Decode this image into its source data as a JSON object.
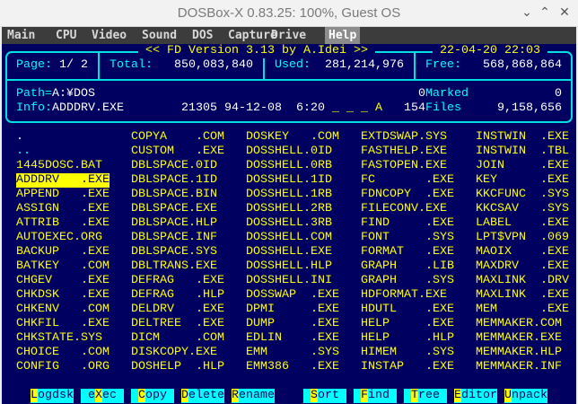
{
  "window": {
    "title": "DOSBox-X 0.83.25: 100%, Guest OS",
    "controls": [
      "⌄",
      "⌃",
      "✕"
    ]
  },
  "menu": [
    {
      "label": "Main"
    },
    {
      "label": "CPU"
    },
    {
      "label": "Video"
    },
    {
      "label": "Sound"
    },
    {
      "label": "DOS"
    },
    {
      "label": "Capture"
    },
    {
      "label": "Drive"
    },
    {
      "label": "Help",
      "active": true
    }
  ],
  "header": {
    "title": "<< FD Version 3.13 by A.Idei >>",
    "datetime": "22-04-20 22:03",
    "page_label": "Page:",
    "page_value": "1/ 2",
    "total_label": "Total:",
    "total_value": "850,083,840",
    "used_label": "Used:",
    "used_value": "281,214,976",
    "free_label": "Free:",
    "free_value": "568,868,864",
    "path_label": "Path=",
    "path_value": "A:¥DOS",
    "marked_count": "0",
    "marked_label": "Marked",
    "marked_size": "0",
    "info_label": "Info:",
    "info_file": "ADDDRV.EXE",
    "info_details": "21305 94-12-08  6:20",
    "info_attrs": "_ _ _ A",
    "files_count": "154",
    "files_label": "Files",
    "files_size": "9,158,656"
  },
  "files": [
    [
      ".",
      "..",
      "1445DOSC.BAT",
      "ADDDRV   .EXE",
      "APPEND   .EXE",
      "ASSIGN   .EXE",
      "ATTRIB   .EXE",
      "AUTOEXEC.ORG",
      "BACKUP   .EXE",
      "BATKEY   .COM",
      "CHGEV    .EXE",
      "CHKDSK   .EXE",
      "CHKENV   .COM",
      "CHKFIL   .EXE",
      "CHKSTATE.SYS",
      "CHOICE   .COM",
      "CONFIG   .ORG"
    ],
    [
      "COPYA    .COM",
      "CUSTOM   .EXE",
      "DBLSPACE.0ID",
      "DBLSPACE.1ID",
      "DBLSPACE.BIN",
      "DBLSPACE.EXE",
      "DBLSPACE.HLP",
      "DBLSPACE.INF",
      "DBLSPACE.SYS",
      "DBLTRANS.EXE",
      "DEFRAG   .EXE",
      "DEFRAG   .HLP",
      "DELDRV   .EXE",
      "DELTREE  .EXE",
      "DICM     .COM",
      "DISKCOPY.EXE",
      "DOSHELP  .HLP"
    ],
    [
      "DOSKEY   .COM",
      "DOSSHELL.0ID",
      "DOSSHELL.0RB",
      "DOSSHELL.1ID",
      "DOSSHELL.1RB",
      "DOSSHELL.2RB",
      "DOSSHELL.3RB",
      "DOSSHELL.COM",
      "DOSSHELL.EXE",
      "DOSSHELL.HLP",
      "DOSSHELL.INI",
      "DOSSWAP  .EXE",
      "DPMI     .EXE",
      "DUMP     .EXE",
      "EDLIN    .EXE",
      "EMM      .SYS",
      "EMM386   .EXE"
    ],
    [
      "EXTDSWAP.SYS",
      "FASTHELP.EXE",
      "FASTOPEN.EXE",
      "FC       .EXE",
      "FDNCOPY  .EXE",
      "FILECONV.EXE",
      "FIND     .EXE",
      "FONT     .SYS",
      "FORMAT   .EXE",
      "GRAPH    .LIB",
      "GRAPH    .SYS",
      "HDFORMAT.EXE",
      "HDUTL    .EXE",
      "HELP     .EXE",
      "HELP     .HLP",
      "HIMEM    .SYS",
      "INSTAP   .EXE"
    ],
    [
      "INSTWIN  .EXE",
      "INSTWIN  .TBL",
      "JOIN     .EXE",
      "KEY      .EXE",
      "KKCFUNC  .SYS",
      "KKCSAV   .SYS",
      "LABEL    .EXE",
      "LPT$VPN  .069",
      "MAOIX    .EXE",
      "MAXDRV   .EXE",
      "MAXLINK  .DRV",
      "MAXLINK  .EXE",
      "MEM      .EXE",
      "MEMMAKER.COM",
      "MEMMAKER.EXE",
      "MEMMAKER.HLP",
      "MEMMAKER.INF"
    ]
  ],
  "selected_file": "ADDDRV   .EXE",
  "function_keys": [
    {
      "pre": "",
      "key": "L",
      "post": "ogdsk"
    },
    {
      "pre": " e",
      "key": "X",
      "post": "ec "
    },
    {
      "pre": " ",
      "key": "C",
      "post": "opy "
    },
    {
      "pre": "",
      "key": "D",
      "post": "elete"
    },
    {
      "pre": "",
      "key": "R",
      "post": "ename"
    },
    {
      "pre": " ",
      "key": "S",
      "post": "ort "
    },
    {
      "pre": " ",
      "key": "F",
      "post": "ind "
    },
    {
      "pre": " ",
      "key": "T",
      "post": "ree "
    },
    {
      "pre": "",
      "key": "E",
      "post": "ditor"
    },
    {
      "pre": "",
      "key": "U",
      "post": "npack"
    }
  ],
  "colors": {
    "background": "#000060",
    "frame": "#00ffff",
    "files": "#ffff00",
    "label": "#00ffff",
    "value": "#ffffff"
  }
}
